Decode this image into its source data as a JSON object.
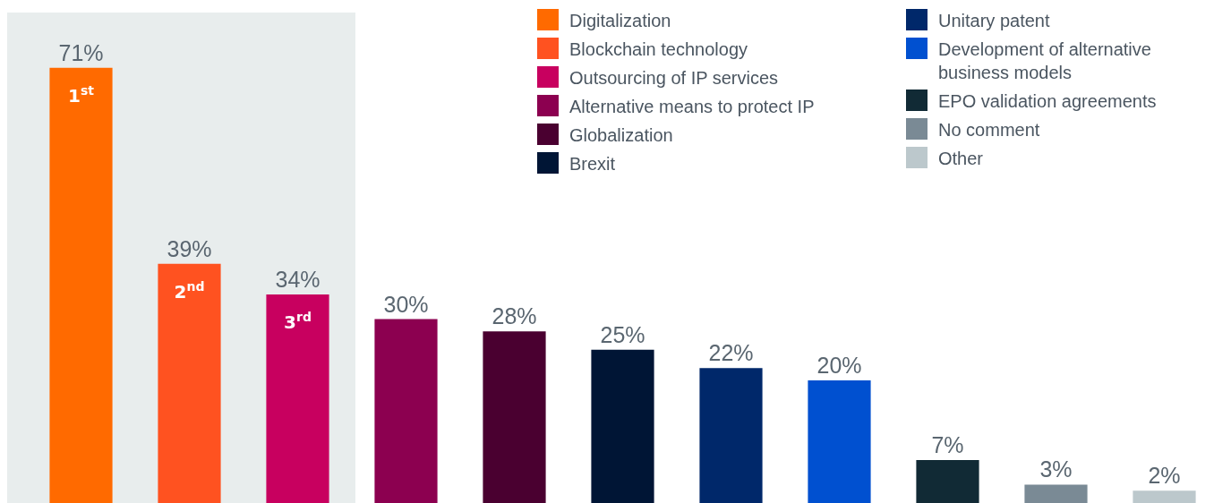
{
  "chart_data": {
    "type": "bar",
    "categories": [
      null,
      null,
      null,
      null,
      null,
      null,
      null,
      null,
      null,
      null,
      null
    ],
    "series": [
      {
        "name": "Digitalization",
        "color": "#ff6a00",
        "values": [
          71,
          null,
          null,
          null,
          null,
          null,
          null,
          null,
          null,
          null,
          null
        ],
        "value_labels": [
          "71%",
          null,
          null,
          null,
          null,
          null,
          null,
          null,
          null,
          null,
          null
        ]
      },
      {
        "name": "Blockchain technology",
        "color": "#ff5220",
        "values": [
          null,
          39,
          null,
          null,
          null,
          null,
          null,
          null,
          null,
          null,
          null
        ],
        "value_labels": [
          null,
          "39%",
          null,
          null,
          null,
          null,
          null,
          null,
          null,
          null,
          null
        ]
      },
      {
        "name": "Outsourcing of IP services",
        "color": "#c8005f",
        "values": [
          null,
          null,
          34,
          null,
          null,
          null,
          null,
          null,
          null,
          null,
          null
        ],
        "value_labels": [
          null,
          null,
          "34%",
          null,
          null,
          null,
          null,
          null,
          null,
          null,
          null
        ]
      },
      {
        "name": "Alternative means to protect IP",
        "color": "#8c0050",
        "values": [
          null,
          null,
          null,
          30,
          null,
          null,
          null,
          null,
          null,
          null,
          null
        ],
        "value_labels": [
          null,
          null,
          null,
          "30%",
          null,
          null,
          null,
          null,
          null,
          null,
          null
        ]
      },
      {
        "name": "Globalization",
        "color": "#4a0030",
        "values": [
          null,
          null,
          null,
          null,
          28,
          null,
          null,
          null,
          null,
          null,
          null
        ],
        "value_labels": [
          null,
          null,
          null,
          null,
          "28%",
          null,
          null,
          null,
          null,
          null,
          null
        ]
      },
      {
        "name": "Brexit",
        "color": "#001535",
        "values": [
          null,
          null,
          null,
          null,
          null,
          25,
          null,
          null,
          null,
          null,
          null
        ],
        "value_labels": [
          null,
          null,
          null,
          null,
          null,
          "25%",
          null,
          null,
          null,
          null,
          null
        ]
      },
      {
        "name": "Unitary patent",
        "color": "#00286a",
        "values": [
          null,
          null,
          null,
          null,
          null,
          null,
          22,
          null,
          null,
          null,
          null
        ],
        "value_labels": [
          null,
          null,
          null,
          null,
          null,
          null,
          "22%",
          null,
          null,
          null,
          null
        ]
      },
      {
        "name": "Development of alternative business models",
        "color": "#0050d0",
        "values": [
          null,
          null,
          null,
          null,
          null,
          null,
          null,
          20,
          null,
          null,
          null
        ],
        "value_labels": [
          null,
          null,
          null,
          null,
          null,
          null,
          null,
          "20%",
          null,
          null,
          null
        ]
      },
      {
        "name": "EPO validation agreements",
        "color": "#112a35",
        "values": [
          null,
          null,
          null,
          null,
          null,
          null,
          null,
          null,
          7,
          null,
          null
        ],
        "value_labels": [
          null,
          null,
          null,
          null,
          null,
          null,
          null,
          null,
          "7%",
          null,
          null
        ]
      },
      {
        "name": "No comment",
        "color": "#7a8a95",
        "values": [
          null,
          null,
          null,
          null,
          null,
          null,
          null,
          null,
          null,
          3,
          null
        ],
        "value_labels": [
          null,
          null,
          null,
          null,
          null,
          null,
          null,
          null,
          null,
          "3%",
          null
        ]
      },
      {
        "name": "Other",
        "color": "#bcc8cc",
        "values": [
          null,
          null,
          null,
          null,
          null,
          null,
          null,
          null,
          null,
          null,
          2
        ],
        "value_labels": [
          null,
          null,
          null,
          null,
          null,
          null,
          null,
          null,
          null,
          null,
          "2%"
        ]
      }
    ],
    "tick_labels": false,
    "stacked": true,
    "legend": "top right",
    "annotations": [
      "1$^{st}$",
      "2$^{nd}$",
      "3$^{rd}$"
    ]
  }
}
